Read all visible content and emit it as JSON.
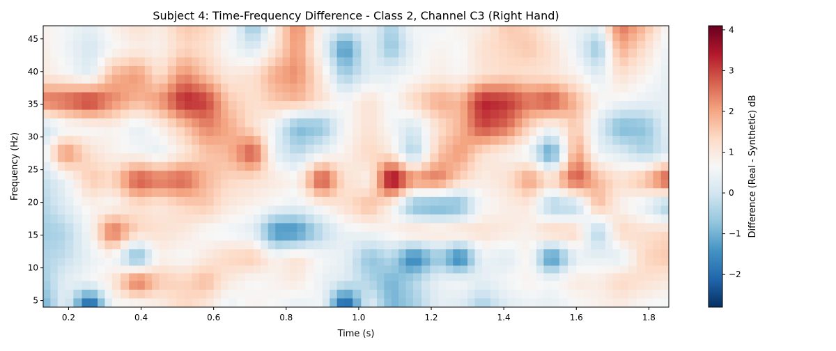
{
  "chart_data": {
    "type": "heatmap",
    "title": "Subject 4: Time-Frequency Difference - Class 2, Channel C3 (Right Hand)",
    "xlabel": "Time (s)",
    "ylabel": "Frequency (Hz)",
    "colorbar_label": "Difference (Real - Synthetic) dB",
    "xlim": [
      0.13,
      1.855
    ],
    "ylim": [
      4,
      47
    ],
    "xticks": [
      0.2,
      0.4,
      0.6,
      0.8,
      1.0,
      1.2,
      1.4,
      1.6,
      1.8
    ],
    "xtick_labels": [
      "0.2",
      "0.4",
      "0.6",
      "0.8",
      "1.0",
      "1.2",
      "1.4",
      "1.6",
      "1.8"
    ],
    "yticks": [
      5,
      10,
      15,
      20,
      25,
      30,
      35,
      40,
      45
    ],
    "ytick_labels": [
      "5",
      "10",
      "15",
      "20",
      "25",
      "30",
      "35",
      "40",
      "45"
    ],
    "colorbar_ticks": [
      4,
      3,
      2,
      1,
      0,
      -1,
      -2
    ],
    "colorbar_tick_labels": [
      "4",
      "3",
      "2",
      "1",
      "0",
      "−1",
      "−2"
    ],
    "colormap": [
      "#053061",
      "#2166ac",
      "#4393c3",
      "#92c5de",
      "#d1e5f0",
      "#f7f7f7",
      "#fddbc7",
      "#f4a582",
      "#d6604d",
      "#b2182b",
      "#67001f"
    ],
    "color_range": [
      -2.8,
      4.1
    ],
    "time_samples": [
      0.13,
      0.19,
      0.26,
      0.32,
      0.39,
      0.45,
      0.52,
      0.58,
      0.64,
      0.71,
      0.77,
      0.83,
      0.9,
      0.96,
      1.03,
      1.09,
      1.15,
      1.22,
      1.28,
      1.34,
      1.41,
      1.47,
      1.53,
      1.6,
      1.66,
      1.72,
      1.79,
      1.855
    ],
    "frequency_samples": [
      47,
      43.5,
      39.5,
      35.5,
      31.5,
      27.5,
      23.5,
      19.5,
      15.5,
      11.5,
      8,
      4
    ],
    "values": [
      [
        0.8,
        0.6,
        0.3,
        0.8,
        1.2,
        0.9,
        1.6,
        1.4,
        0.8,
        -0.8,
        0.9,
        2.4,
        0.6,
        0.3,
        0.4,
        -0.5,
        0.6,
        0.5,
        0.8,
        0.9,
        1.6,
        1.4,
        0.8,
        0.5,
        0.3,
        2.6,
        1.8,
        0.6
      ],
      [
        0.9,
        0.5,
        0.0,
        0.6,
        0.9,
        0.8,
        1.4,
        1.2,
        0.6,
        0.1,
        1.1,
        2.2,
        0.5,
        -1.6,
        0.4,
        -0.8,
        0.4,
        0.8,
        0.6,
        1.2,
        1.4,
        1.6,
        1.2,
        0.4,
        -0.8,
        2.0,
        1.2,
        0.4
      ],
      [
        1.0,
        0.7,
        0.2,
        1.8,
        2.2,
        1.2,
        2.3,
        1.6,
        1.0,
        1.2,
        2.0,
        2.3,
        1.0,
        -0.6,
        0.2,
        0.4,
        0.6,
        0.9,
        0.7,
        1.1,
        1.3,
        1.2,
        1.1,
        0.8,
        0.2,
        1.2,
        0.8,
        0.3
      ],
      [
        2.6,
        2.8,
        3.3,
        2.4,
        1.8,
        2.2,
        3.4,
        3.1,
        1.6,
        1.2,
        1.6,
        1.8,
        1.2,
        0.6,
        1.2,
        0.6,
        1.4,
        2.0,
        1.8,
        3.4,
        3.2,
        2.6,
        3.0,
        1.8,
        0.8,
        0.6,
        0.4,
        0.3
      ],
      [
        -0.2,
        0.4,
        0.6,
        0.8,
        0.3,
        0.8,
        1.6,
        2.4,
        2.0,
        1.2,
        0.4,
        -1.0,
        -0.8,
        0.6,
        1.2,
        0.6,
        0.0,
        1.2,
        1.8,
        3.0,
        2.6,
        1.4,
        0.6,
        1.6,
        0.2,
        -1.0,
        -0.8,
        0.4
      ],
      [
        0.4,
        2.4,
        1.2,
        0.8,
        0.6,
        0.3,
        1.0,
        1.6,
        1.8,
        3.0,
        0.3,
        -0.3,
        0.4,
        0.8,
        1.4,
        1.0,
        -0.6,
        1.6,
        2.2,
        1.2,
        0.8,
        0.4,
        -1.6,
        2.2,
        0.4,
        0.2,
        -0.4,
        0.1
      ],
      [
        -0.2,
        0.4,
        1.6,
        1.4,
        3.0,
        2.6,
        2.8,
        1.8,
        1.4,
        1.2,
        1.0,
        0.8,
        3.2,
        1.2,
        0.8,
        4.1,
        2.4,
        2.6,
        1.4,
        0.9,
        1.2,
        2.2,
        1.4,
        3.0,
        1.8,
        1.2,
        1.8,
        3.2
      ],
      [
        -0.4,
        0.2,
        0.8,
        0.6,
        1.2,
        1.0,
        1.4,
        1.6,
        1.0,
        0.8,
        0.6,
        0.4,
        0.8,
        1.2,
        1.8,
        0.8,
        -1.0,
        -1.2,
        -1.0,
        0.6,
        0.9,
        1.0,
        -0.6,
        -0.4,
        1.8,
        0.8,
        0.3,
        -0.8
      ],
      [
        -0.6,
        -0.4,
        0.6,
        2.8,
        1.4,
        1.2,
        1.0,
        0.6,
        0.5,
        0.2,
        -1.6,
        -1.6,
        -0.3,
        0.4,
        0.6,
        0.8,
        1.4,
        1.2,
        1.4,
        1.2,
        1.0,
        0.8,
        1.6,
        1.4,
        -0.6,
        1.4,
        1.2,
        1.4
      ],
      [
        -0.4,
        -0.2,
        0.4,
        0.6,
        -1.2,
        0.8,
        0.6,
        1.0,
        1.4,
        1.6,
        0.8,
        1.2,
        0.6,
        0.4,
        -0.8,
        -0.3,
        -1.9,
        -0.6,
        -2.0,
        0.4,
        0.2,
        0.8,
        -1.8,
        0.3,
        0.4,
        0.2,
        1.4,
        1.6
      ],
      [
        -0.6,
        0.3,
        0.6,
        1.0,
        2.8,
        1.6,
        1.4,
        1.8,
        1.0,
        0.6,
        0.8,
        1.0,
        0.4,
        0.2,
        -0.4,
        -1.0,
        -0.4,
        0.4,
        0.6,
        0.3,
        0.6,
        0.8,
        0.6,
        1.0,
        0.9,
        1.4,
        1.2,
        1.0
      ],
      [
        -1.2,
        0.4,
        -2.8,
        0.6,
        0.4,
        0.8,
        1.4,
        1.0,
        0.4,
        0.8,
        0.6,
        0.3,
        0.6,
        -2.8,
        0.4,
        -1.0,
        -0.6,
        0.3,
        0.2,
        -0.6,
        0.2,
        0.4,
        0.3,
        0.6,
        0.8,
        0.9,
        0.6,
        0.5
      ]
    ]
  }
}
